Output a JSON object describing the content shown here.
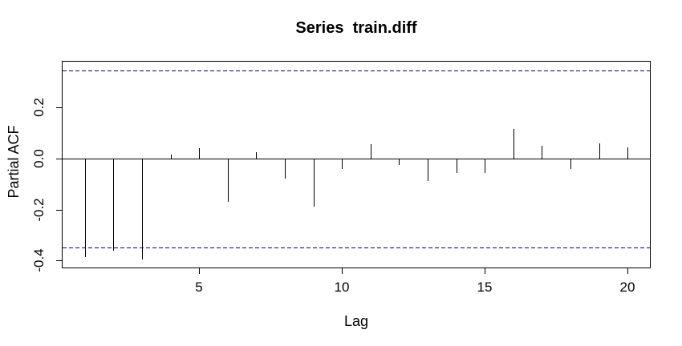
{
  "chart_data": {
    "type": "bar",
    "subtype": "pacf-stem-plot",
    "title": "Series  train.diff",
    "xlabel": "Lag",
    "ylabel": "Partial ACF",
    "x": [
      1,
      2,
      3,
      4,
      5,
      6,
      7,
      8,
      9,
      10,
      11,
      12,
      13,
      14,
      15,
      16,
      17,
      18,
      19,
      20
    ],
    "values": [
      -0.386,
      -0.362,
      -0.396,
      0.015,
      0.041,
      -0.17,
      0.024,
      -0.077,
      -0.189,
      -0.04,
      0.057,
      -0.026,
      -0.088,
      -0.057,
      -0.057,
      0.116,
      0.049,
      -0.041,
      0.06,
      0.045
    ],
    "confidence_band": 0.347,
    "confidence_band_style": "dashed",
    "xticks": [
      5,
      10,
      15,
      20
    ],
    "xtick_labels": [
      "5",
      "10",
      "15",
      "20"
    ],
    "yticks": [
      0.2,
      0.0,
      -0.2,
      -0.4
    ],
    "ytick_labels": [
      "0.2",
      "0.0",
      "-0.2",
      "-0.4"
    ],
    "xlim": [
      0.22,
      20.78
    ],
    "ylim": [
      -0.427,
      0.38
    ],
    "grid": false,
    "legend": null,
    "colors": {
      "bar": "#000000",
      "axis": "#000000",
      "confidence_band": "#00008B",
      "background": "#ffffff"
    }
  }
}
